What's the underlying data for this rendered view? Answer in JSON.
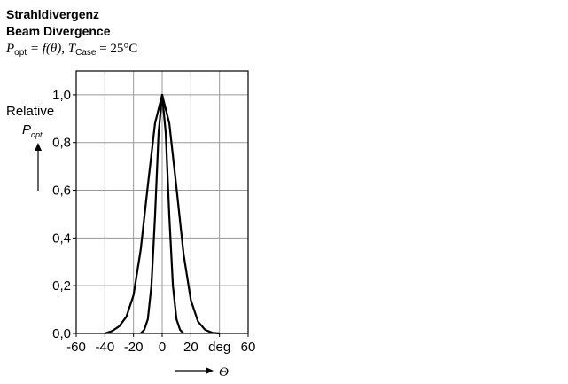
{
  "chart_data": {
    "type": "line",
    "title": "Strahldivergenz",
    "subtitle": "Beam Divergence",
    "formula": {
      "p": "P",
      "p_sub": "opt",
      "mid": " = f(θ), ",
      "t": "T",
      "t_sub": "Case",
      "end": " = 25°C"
    },
    "y_label": "Relative",
    "y_label_symbol": "P",
    "y_label_sub": "opt",
    "x_label": "Θ",
    "xlim": [
      -60,
      60
    ],
    "ylim": [
      0,
      1.1
    ],
    "xticks": [
      -60,
      -40,
      -20,
      0,
      20,
      {
        "value": 40,
        "label": "deg"
      },
      60
    ],
    "yticks": [
      {
        "value": 0,
        "label": "0,0"
      },
      {
        "value": 0.2,
        "label": "0,2"
      },
      {
        "value": 0.4,
        "label": "0,4"
      },
      {
        "value": 0.6,
        "label": "0,6"
      },
      {
        "value": 0.8,
        "label": "0,8"
      },
      {
        "value": 1.0,
        "label": "1,0"
      }
    ],
    "grid": true,
    "series": [
      {
        "color": "#000000",
        "x": [
          -40,
          -35,
          -30,
          -25,
          -20,
          -15,
          -10,
          -5,
          0,
          5,
          10,
          15,
          20,
          25,
          30,
          35,
          40
        ],
        "values": [
          0,
          0.01,
          0.03,
          0.07,
          0.16,
          0.35,
          0.62,
          0.88,
          1.0,
          0.88,
          0.61,
          0.33,
          0.14,
          0.05,
          0.015,
          0.003,
          0
        ]
      },
      {
        "color": "#000000",
        "x": [
          -15,
          -12.5,
          -10,
          -7.5,
          -5,
          -2.5,
          0,
          2.5,
          5,
          7.5,
          10,
          12.5,
          15
        ],
        "values": [
          0,
          0.015,
          0.06,
          0.2,
          0.49,
          0.84,
          1.0,
          0.84,
          0.49,
          0.2,
          0.06,
          0.015,
          0
        ]
      }
    ]
  }
}
